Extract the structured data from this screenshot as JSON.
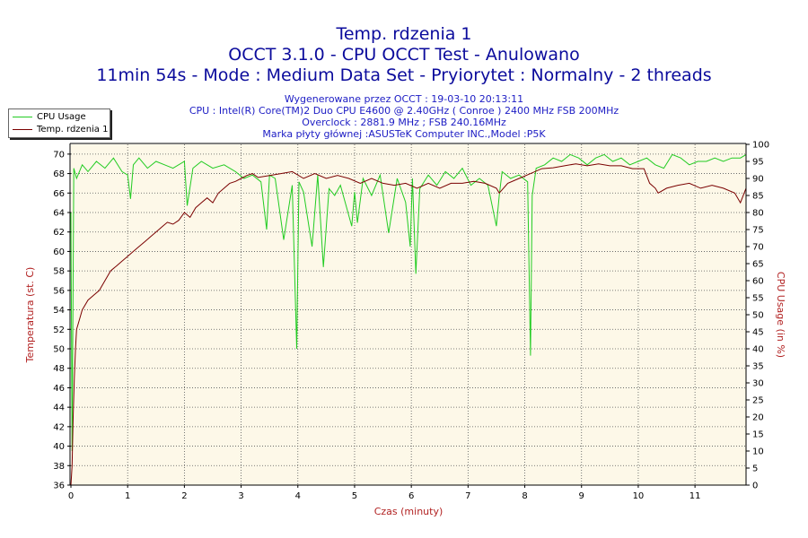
{
  "header": {
    "title": "Temp. rdzenia 1",
    "subtitle": "OCCT 3.1.0 - CPU OCCT Test - Anulowano",
    "run_info": "11min 54s - Mode : Medium Data Set - Pryiorytet : Normalny - 2 threads"
  },
  "info": {
    "generated": "Wygenerowane przez OCCT : 19-03-10 20:13:11",
    "cpu": "CPU : Intel(R) Core(TM)2 Duo CPU E4600 @ 2.40GHz ( Conroe ) 2400 MHz FSB 200MHz",
    "overclock": "Overclock : 2881.9 MHz ; FSB 240.16MHz",
    "motherboard": "Marka płyty głównej :ASUSTeK Computer INC.,Model :P5K"
  },
  "colors": {
    "temperature": "#7a0000",
    "cpu_usage": "#22cc22",
    "plot_background": "#fdf8e8",
    "grid": "#555555",
    "title": "#0b0b9c",
    "axis_label": "#b22222"
  },
  "chart_data": {
    "type": "line",
    "xlabel": "Czas (minuty)",
    "xlim": [
      0,
      11.9
    ],
    "xticks": [
      "0",
      "1",
      "2",
      "3",
      "4",
      "5",
      "6",
      "7",
      "8",
      "9",
      "10",
      "11"
    ],
    "ylabel_left": "Temperatura (st. C)",
    "ylim_left": [
      36,
      71
    ],
    "yticks_left": [
      "36",
      "38",
      "40",
      "42",
      "44",
      "46",
      "48",
      "50",
      "52",
      "54",
      "56",
      "58",
      "60",
      "62",
      "64",
      "66",
      "68",
      "70"
    ],
    "ylabel_right": "CPU Usage (in %)",
    "ylim_right": [
      0,
      100
    ],
    "yticks_right": [
      "0",
      "5",
      "10",
      "15",
      "20",
      "25",
      "30",
      "35",
      "40",
      "45",
      "50",
      "55",
      "60",
      "65",
      "70",
      "75",
      "80",
      "85",
      "90",
      "95",
      "100"
    ],
    "grid": true,
    "legend_position": "top-left",
    "series": [
      {
        "name": "CPU Usage",
        "axis": "right",
        "color": "#22cc22",
        "x": [
          0,
          0.02,
          0.05,
          0.1,
          0.2,
          0.3,
          0.45,
          0.6,
          0.75,
          0.9,
          1.0,
          1.05,
          1.1,
          1.2,
          1.35,
          1.5,
          1.65,
          1.8,
          2.0,
          2.05,
          2.15,
          2.3,
          2.5,
          2.7,
          2.9,
          3.05,
          3.2,
          3.35,
          3.45,
          3.5,
          3.6,
          3.75,
          3.9,
          3.98,
          4.02,
          4.1,
          4.25,
          4.35,
          4.45,
          4.55,
          4.65,
          4.75,
          4.85,
          4.95,
          5.0,
          5.05,
          5.15,
          5.3,
          5.45,
          5.6,
          5.75,
          5.9,
          5.98,
          6.02,
          6.08,
          6.15,
          6.3,
          6.45,
          6.6,
          6.75,
          6.9,
          7.05,
          7.2,
          7.35,
          7.5,
          7.55,
          7.6,
          7.75,
          7.9,
          8.05,
          8.1,
          8.13,
          8.2,
          8.35,
          8.5,
          8.65,
          8.8,
          8.95,
          9.1,
          9.25,
          9.4,
          9.55,
          9.7,
          9.85,
          10.0,
          10.15,
          10.3,
          10.45,
          10.6,
          10.75,
          10.9,
          11.05,
          11.2,
          11.35,
          11.5,
          11.65,
          11.8,
          11.9
        ],
        "values": [
          80,
          10,
          93,
          90,
          94,
          92,
          95,
          93,
          96,
          92,
          91,
          84,
          94,
          96,
          93,
          95,
          94,
          93,
          95,
          82,
          93,
          95,
          93,
          94,
          92,
          90,
          91,
          89,
          75,
          91,
          90,
          72,
          88,
          40,
          89,
          86,
          70,
          91,
          64,
          87,
          85,
          88,
          82,
          76,
          86,
          77,
          90,
          85,
          91,
          74,
          90,
          83,
          70,
          90,
          62,
          87,
          91,
          88,
          92,
          90,
          93,
          88,
          90,
          88,
          76,
          85,
          92,
          90,
          91,
          89,
          38,
          85,
          93,
          94,
          96,
          95,
          97,
          96,
          94,
          96,
          97,
          95,
          96,
          94,
          95,
          96,
          94,
          93,
          97,
          96,
          94,
          95,
          95,
          96,
          95,
          96,
          96,
          97
        ]
      },
      {
        "name": "Temp. rdzenia 1",
        "axis": "left",
        "color": "#7a0000",
        "x": [
          0,
          0.02,
          0.04,
          0.06,
          0.08,
          0.1,
          0.15,
          0.2,
          0.3,
          0.4,
          0.5,
          0.6,
          0.7,
          0.8,
          0.9,
          1.0,
          1.1,
          1.2,
          1.3,
          1.4,
          1.5,
          1.6,
          1.7,
          1.8,
          1.9,
          2.0,
          2.1,
          2.2,
          2.3,
          2.4,
          2.5,
          2.6,
          2.7,
          2.8,
          2.9,
          3.0,
          3.1,
          3.2,
          3.3,
          3.5,
          3.7,
          3.9,
          4.1,
          4.3,
          4.5,
          4.7,
          4.9,
          5.1,
          5.3,
          5.5,
          5.7,
          5.9,
          6.1,
          6.3,
          6.5,
          6.7,
          6.9,
          7.1,
          7.3,
          7.5,
          7.55,
          7.7,
          7.9,
          8.1,
          8.3,
          8.5,
          8.7,
          8.9,
          9.1,
          9.3,
          9.5,
          9.7,
          9.9,
          10.1,
          10.2,
          10.3,
          10.35,
          10.5,
          10.7,
          10.9,
          11.1,
          11.3,
          11.5,
          11.7,
          11.8,
          11.9
        ],
        "values": [
          36,
          38,
          43,
          47,
          50,
          52,
          53,
          54,
          55,
          55.5,
          56,
          57,
          58,
          58.5,
          59,
          59.5,
          60,
          60.5,
          61,
          61.5,
          62,
          62.5,
          63,
          62.8,
          63.2,
          64,
          63.5,
          64.5,
          65,
          65.5,
          65,
          66,
          66.5,
          67,
          67.2,
          67.5,
          67.8,
          68,
          67.6,
          67.8,
          68,
          68.2,
          67.5,
          68,
          67.5,
          67.8,
          67.5,
          67,
          67.5,
          67,
          66.8,
          67,
          66.5,
          67,
          66.5,
          67,
          67,
          67.2,
          67,
          66.5,
          66,
          67,
          67.5,
          68,
          68.5,
          68.6,
          68.8,
          69,
          68.8,
          69,
          68.8,
          68.8,
          68.5,
          68.5,
          67,
          66.5,
          66,
          66.5,
          66.8,
          67,
          66.5,
          66.8,
          66.5,
          66,
          65,
          66.5
        ]
      }
    ]
  }
}
